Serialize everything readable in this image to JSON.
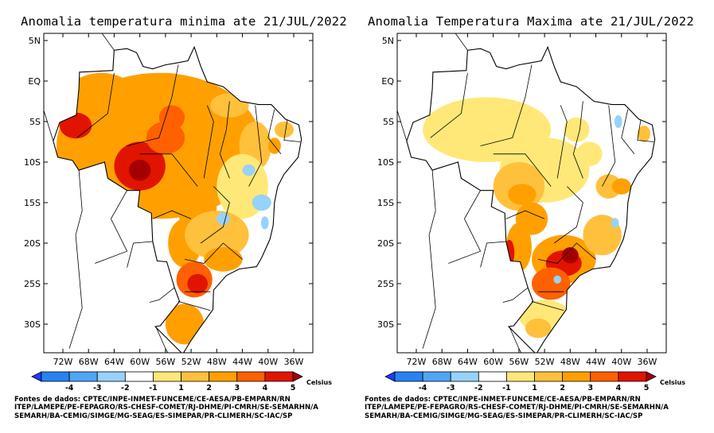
{
  "panels": [
    {
      "title": "Anomalia temperatura minima ate 21/JUL/2022",
      "lat_labels": [
        "5N",
        "EQ",
        "5S",
        "10S",
        "15S",
        "20S",
        "25S",
        "30S"
      ],
      "lon_labels": [
        "72W",
        "68W",
        "64W",
        "60W",
        "56W",
        "52W",
        "48W",
        "44W",
        "40W",
        "36W"
      ],
      "colorbar": {
        "ticks": [
          "-4",
          "-3",
          "-2",
          "-1",
          "1",
          "2",
          "3",
          "4",
          "5"
        ],
        "unit": "Celsius"
      },
      "sources": [
        "Fontes de dados: CPTEC/INPE-INMET-FUNCEME/CE-AESA/PB-EMPARN/RN",
        "ITEP/LAMEPE/PE-FEPAGRO/RS-CHESF-COMET/RJ-DHME/PI-CMRH/SE-SEMARHN/A",
        "SEMARH/BA-CEMIG/SIMGE/MG-SEAG/ES-SIMEPAR/PR-CLIMERH/SC-IAC/SP"
      ]
    },
    {
      "title": "Anomalia Temperatura Maxima ate 21/JUL/2022",
      "lat_labels": [
        "5N",
        "EQ",
        "5S",
        "10S",
        "15S",
        "20S",
        "25S",
        "30S"
      ],
      "lon_labels": [
        "72W",
        "68W",
        "64W",
        "60W",
        "56W",
        "52W",
        "48W",
        "44W",
        "40W",
        "36W"
      ],
      "colorbar": {
        "ticks": [
          "-4",
          "-3",
          "-2",
          "-1",
          "1",
          "2",
          "3",
          "4",
          "5"
        ],
        "unit": "Celsius"
      },
      "sources": [
        "Fontes de dados: CPTEC/INPE-INMET-FUNCEME/CE-AESA/PB-EMPARN/RN",
        "ITEP/LAMEPE/PE-FEPAGRO/RS-CHESF-COMET/RJ-DHME/PI-CMRH/SE-SEMARHN/A",
        "SEMARH/BA-CEMIG/SIMGE/MG-SEAG/ES-SIMEPAR/PR-CLIMERH/SC-IAC/SP"
      ]
    }
  ],
  "colorbar_colors": [
    "#1e3cff",
    "#2882f0",
    "#50a5f5",
    "#96d2fa",
    "#ffffff",
    "#ffe878",
    "#ffc03c",
    "#ffa000",
    "#ff6000",
    "#e11400",
    "#a50000"
  ]
}
